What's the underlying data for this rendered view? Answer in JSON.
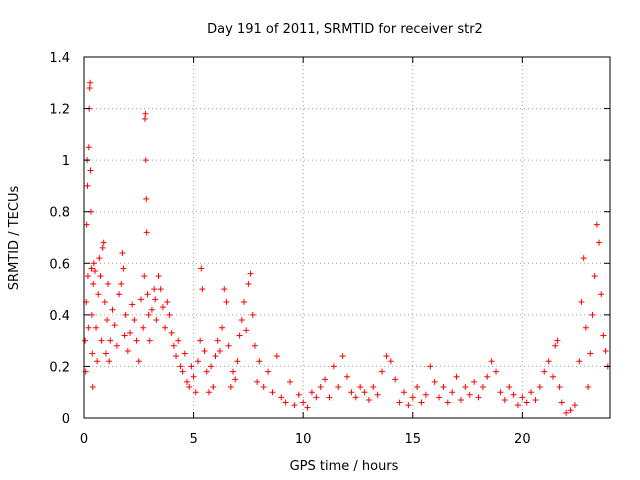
{
  "chart_data": {
    "type": "scatter",
    "title": "Day 191 of 2011, SRMTID for receiver str2",
    "xlabel": "GPS time / hours",
    "ylabel": "SRMTID / TECUs",
    "xlim": [
      0,
      24
    ],
    "ylim": [
      0,
      1.4
    ],
    "x_ticks": [
      0,
      5,
      10,
      15,
      20
    ],
    "x_tick_labels": [
      "0",
      "5",
      "10",
      "15",
      "20"
    ],
    "y_ticks": [
      0,
      0.2,
      0.4,
      0.6,
      0.8,
      1,
      1.2,
      1.4
    ],
    "y_tick_labels": [
      "0",
      "0.2",
      "0.4",
      "0.6",
      "0.8",
      "1",
      "1.2",
      "1.4"
    ],
    "grid": true,
    "marker": "plus",
    "marker_color": "#ff0000",
    "series": [
      {
        "name": "SRMTID",
        "points": [
          [
            0.05,
            0.3
          ],
          [
            0.08,
            0.18
          ],
          [
            0.1,
            0.45
          ],
          [
            0.12,
            0.75
          ],
          [
            0.14,
            1.0
          ],
          [
            0.16,
            0.9
          ],
          [
            0.18,
            0.55
          ],
          [
            0.2,
            0.35
          ],
          [
            0.22,
            1.05
          ],
          [
            0.24,
            1.2
          ],
          [
            0.26,
            1.28
          ],
          [
            0.28,
            1.3
          ],
          [
            0.3,
            0.96
          ],
          [
            0.32,
            0.8
          ],
          [
            0.34,
            0.58
          ],
          [
            0.36,
            0.4
          ],
          [
            0.38,
            0.25
          ],
          [
            0.4,
            0.12
          ],
          [
            0.42,
            0.52
          ],
          [
            0.45,
            0.6
          ],
          [
            0.5,
            0.57
          ],
          [
            0.55,
            0.35
          ],
          [
            0.6,
            0.22
          ],
          [
            0.65,
            0.48
          ],
          [
            0.7,
            0.62
          ],
          [
            0.75,
            0.55
          ],
          [
            0.8,
            0.3
          ],
          [
            0.85,
            0.66
          ],
          [
            0.9,
            0.68
          ],
          [
            0.95,
            0.45
          ],
          [
            1.0,
            0.25
          ],
          [
            1.05,
            0.38
          ],
          [
            1.1,
            0.52
          ],
          [
            1.15,
            0.22
          ],
          [
            1.2,
            0.3
          ],
          [
            1.3,
            0.42
          ],
          [
            1.4,
            0.36
          ],
          [
            1.5,
            0.28
          ],
          [
            1.6,
            0.48
          ],
          [
            1.7,
            0.52
          ],
          [
            1.75,
            0.64
          ],
          [
            1.8,
            0.58
          ],
          [
            1.85,
            0.32
          ],
          [
            1.9,
            0.4
          ],
          [
            2.0,
            0.26
          ],
          [
            2.1,
            0.33
          ],
          [
            2.2,
            0.44
          ],
          [
            2.3,
            0.38
          ],
          [
            2.4,
            0.3
          ],
          [
            2.5,
            0.22
          ],
          [
            2.6,
            0.46
          ],
          [
            2.7,
            0.35
          ],
          [
            2.75,
            0.55
          ],
          [
            2.78,
            1.16
          ],
          [
            2.8,
            1.18
          ],
          [
            2.82,
            1.0
          ],
          [
            2.84,
            0.85
          ],
          [
            2.86,
            0.72
          ],
          [
            2.9,
            0.48
          ],
          [
            2.95,
            0.4
          ],
          [
            3.0,
            0.3
          ],
          [
            3.1,
            0.42
          ],
          [
            3.2,
            0.5
          ],
          [
            3.25,
            0.46
          ],
          [
            3.3,
            0.38
          ],
          [
            3.4,
            0.55
          ],
          [
            3.5,
            0.5
          ],
          [
            3.6,
            0.43
          ],
          [
            3.7,
            0.35
          ],
          [
            3.8,
            0.45
          ],
          [
            3.9,
            0.4
          ],
          [
            4.0,
            0.33
          ],
          [
            4.1,
            0.28
          ],
          [
            4.2,
            0.24
          ],
          [
            4.3,
            0.3
          ],
          [
            4.4,
            0.2
          ],
          [
            4.5,
            0.18
          ],
          [
            4.6,
            0.25
          ],
          [
            4.7,
            0.14
          ],
          [
            4.8,
            0.12
          ],
          [
            4.9,
            0.2
          ],
          [
            5.0,
            0.16
          ],
          [
            5.1,
            0.1
          ],
          [
            5.2,
            0.22
          ],
          [
            5.3,
            0.3
          ],
          [
            5.35,
            0.58
          ],
          [
            5.4,
            0.5
          ],
          [
            5.5,
            0.26
          ],
          [
            5.6,
            0.18
          ],
          [
            5.7,
            0.1
          ],
          [
            5.8,
            0.2
          ],
          [
            5.9,
            0.12
          ],
          [
            6.0,
            0.24
          ],
          [
            6.1,
            0.3
          ],
          [
            6.2,
            0.26
          ],
          [
            6.3,
            0.35
          ],
          [
            6.4,
            0.5
          ],
          [
            6.5,
            0.45
          ],
          [
            6.6,
            0.28
          ],
          [
            6.7,
            0.12
          ],
          [
            6.8,
            0.18
          ],
          [
            6.9,
            0.15
          ],
          [
            7.0,
            0.22
          ],
          [
            7.1,
            0.32
          ],
          [
            7.2,
            0.38
          ],
          [
            7.3,
            0.45
          ],
          [
            7.4,
            0.34
          ],
          [
            7.5,
            0.52
          ],
          [
            7.6,
            0.56
          ],
          [
            7.7,
            0.4
          ],
          [
            7.8,
            0.28
          ],
          [
            7.9,
            0.14
          ],
          [
            8.0,
            0.22
          ],
          [
            8.2,
            0.12
          ],
          [
            8.4,
            0.18
          ],
          [
            8.6,
            0.1
          ],
          [
            8.8,
            0.24
          ],
          [
            9.0,
            0.08
          ],
          [
            9.2,
            0.06
          ],
          [
            9.4,
            0.14
          ],
          [
            9.6,
            0.05
          ],
          [
            9.8,
            0.09
          ],
          [
            10.0,
            0.06
          ],
          [
            10.2,
            0.04
          ],
          [
            10.4,
            0.1
          ],
          [
            10.6,
            0.08
          ],
          [
            10.8,
            0.12
          ],
          [
            11.0,
            0.15
          ],
          [
            11.2,
            0.08
          ],
          [
            11.4,
            0.2
          ],
          [
            11.6,
            0.12
          ],
          [
            11.8,
            0.24
          ],
          [
            12.0,
            0.16
          ],
          [
            12.2,
            0.1
          ],
          [
            12.4,
            0.08
          ],
          [
            12.6,
            0.12
          ],
          [
            12.8,
            0.1
          ],
          [
            13.0,
            0.07
          ],
          [
            13.2,
            0.12
          ],
          [
            13.4,
            0.09
          ],
          [
            13.6,
            0.18
          ],
          [
            13.8,
            0.24
          ],
          [
            14.0,
            0.22
          ],
          [
            14.2,
            0.15
          ],
          [
            14.4,
            0.06
          ],
          [
            14.6,
            0.1
          ],
          [
            14.8,
            0.05
          ],
          [
            15.0,
            0.08
          ],
          [
            15.2,
            0.12
          ],
          [
            15.4,
            0.06
          ],
          [
            15.6,
            0.09
          ],
          [
            15.8,
            0.2
          ],
          [
            16.0,
            0.14
          ],
          [
            16.2,
            0.08
          ],
          [
            16.4,
            0.12
          ],
          [
            16.6,
            0.06
          ],
          [
            16.8,
            0.1
          ],
          [
            17.0,
            0.16
          ],
          [
            17.2,
            0.07
          ],
          [
            17.4,
            0.12
          ],
          [
            17.6,
            0.09
          ],
          [
            17.8,
            0.14
          ],
          [
            18.0,
            0.08
          ],
          [
            18.2,
            0.12
          ],
          [
            18.4,
            0.16
          ],
          [
            18.6,
            0.22
          ],
          [
            18.8,
            0.18
          ],
          [
            19.0,
            0.1
          ],
          [
            19.2,
            0.07
          ],
          [
            19.4,
            0.12
          ],
          [
            19.6,
            0.09
          ],
          [
            19.8,
            0.05
          ],
          [
            20.0,
            0.08
          ],
          [
            20.2,
            0.06
          ],
          [
            20.4,
            0.1
          ],
          [
            20.6,
            0.07
          ],
          [
            20.8,
            0.12
          ],
          [
            21.0,
            0.18
          ],
          [
            21.2,
            0.22
          ],
          [
            21.4,
            0.16
          ],
          [
            21.5,
            0.28
          ],
          [
            21.6,
            0.3
          ],
          [
            21.7,
            0.12
          ],
          [
            21.8,
            0.06
          ],
          [
            22.0,
            0.02
          ],
          [
            22.2,
            0.03
          ],
          [
            22.4,
            0.05
          ],
          [
            22.6,
            0.22
          ],
          [
            22.7,
            0.45
          ],
          [
            22.8,
            0.62
          ],
          [
            22.9,
            0.35
          ],
          [
            23.0,
            0.12
          ],
          [
            23.1,
            0.25
          ],
          [
            23.2,
            0.4
          ],
          [
            23.3,
            0.55
          ],
          [
            23.4,
            0.75
          ],
          [
            23.5,
            0.68
          ],
          [
            23.6,
            0.48
          ],
          [
            23.7,
            0.32
          ],
          [
            23.8,
            0.26
          ],
          [
            23.9,
            0.2
          ]
        ]
      }
    ]
  }
}
